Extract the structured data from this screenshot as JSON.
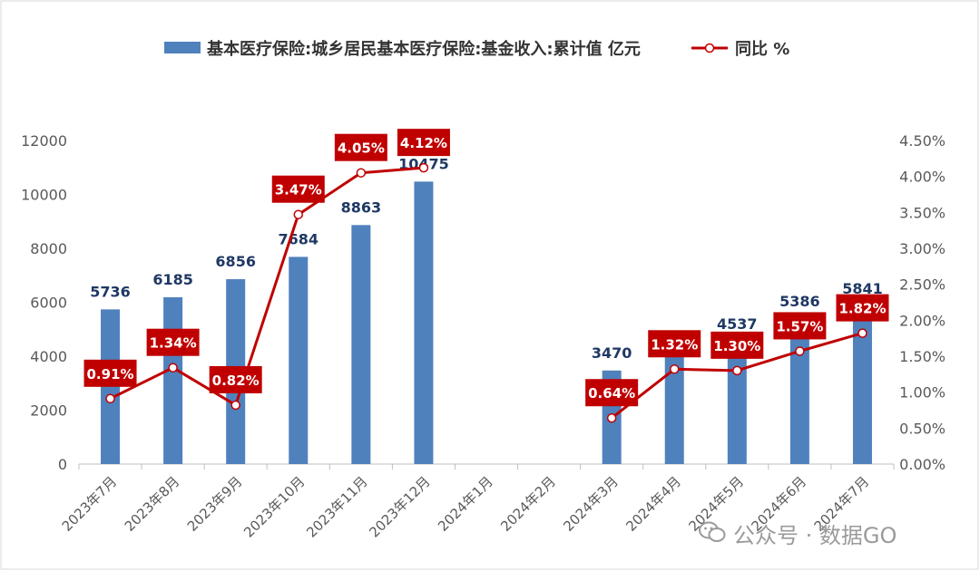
{
  "chart_data": {
    "type": "bar",
    "legend": {
      "position": "top",
      "bar_label": "基本医疗保险:城乡居民基本医疗保险:基金收入:累计值 亿元",
      "line_label": "同比 %"
    },
    "categories": [
      "2023年7月",
      "2023年8月",
      "2023年9月",
      "2023年10月",
      "2023年11月",
      "2023年12月",
      "2024年1月",
      "2024年2月",
      "2024年3月",
      "2024年4月",
      "2024年5月",
      "2024年6月",
      "2024年7月"
    ],
    "series": [
      {
        "name": "基本医疗保险:城乡居民基本医疗保险:基金收入:累计值 亿元",
        "type": "bar",
        "axis": "left",
        "values": [
          5736,
          6185,
          6856,
          7684,
          8863,
          10475,
          null,
          null,
          3470,
          4450,
          4537,
          5386,
          5841
        ],
        "labels": [
          "5736",
          "6185",
          "6856",
          "7684",
          "8863",
          "10475",
          "",
          "",
          "3470",
          "",
          "4537",
          "5386",
          "5841"
        ],
        "color": "#4f81bd"
      },
      {
        "name": "同比 %",
        "type": "line",
        "axis": "right",
        "values": [
          0.91,
          1.34,
          0.82,
          3.47,
          4.05,
          4.12,
          null,
          null,
          0.64,
          1.32,
          1.3,
          1.57,
          1.82
        ],
        "labels": [
          "0.91%",
          "1.34%",
          "0.82%",
          "3.47%",
          "4.05%",
          "4.12%",
          "",
          "",
          "0.64%",
          "1.32%",
          "1.30%",
          "1.57%",
          "1.82%"
        ],
        "color": "#c00000"
      }
    ],
    "y_left": {
      "min": 0,
      "max": 12000,
      "step": 2000,
      "tick_labels": [
        "0",
        "2000",
        "4000",
        "6000",
        "8000",
        "10000",
        "12000"
      ]
    },
    "y_right": {
      "min": 0,
      "max": 4.5,
      "step": 0.5,
      "tick_labels": [
        "0.00%",
        "0.50%",
        "1.00%",
        "1.50%",
        "2.00%",
        "2.50%",
        "3.00%",
        "3.50%",
        "4.00%",
        "4.50%"
      ]
    },
    "grid": false
  },
  "watermark": {
    "text": "公众号 · 数据GO",
    "icon": "wechat-icon"
  },
  "colors": {
    "bar": "#4f81bd",
    "line": "#c00000",
    "bar_label": "#1f3864",
    "axis_text": "#595959",
    "frame": "#d9d9d9"
  }
}
